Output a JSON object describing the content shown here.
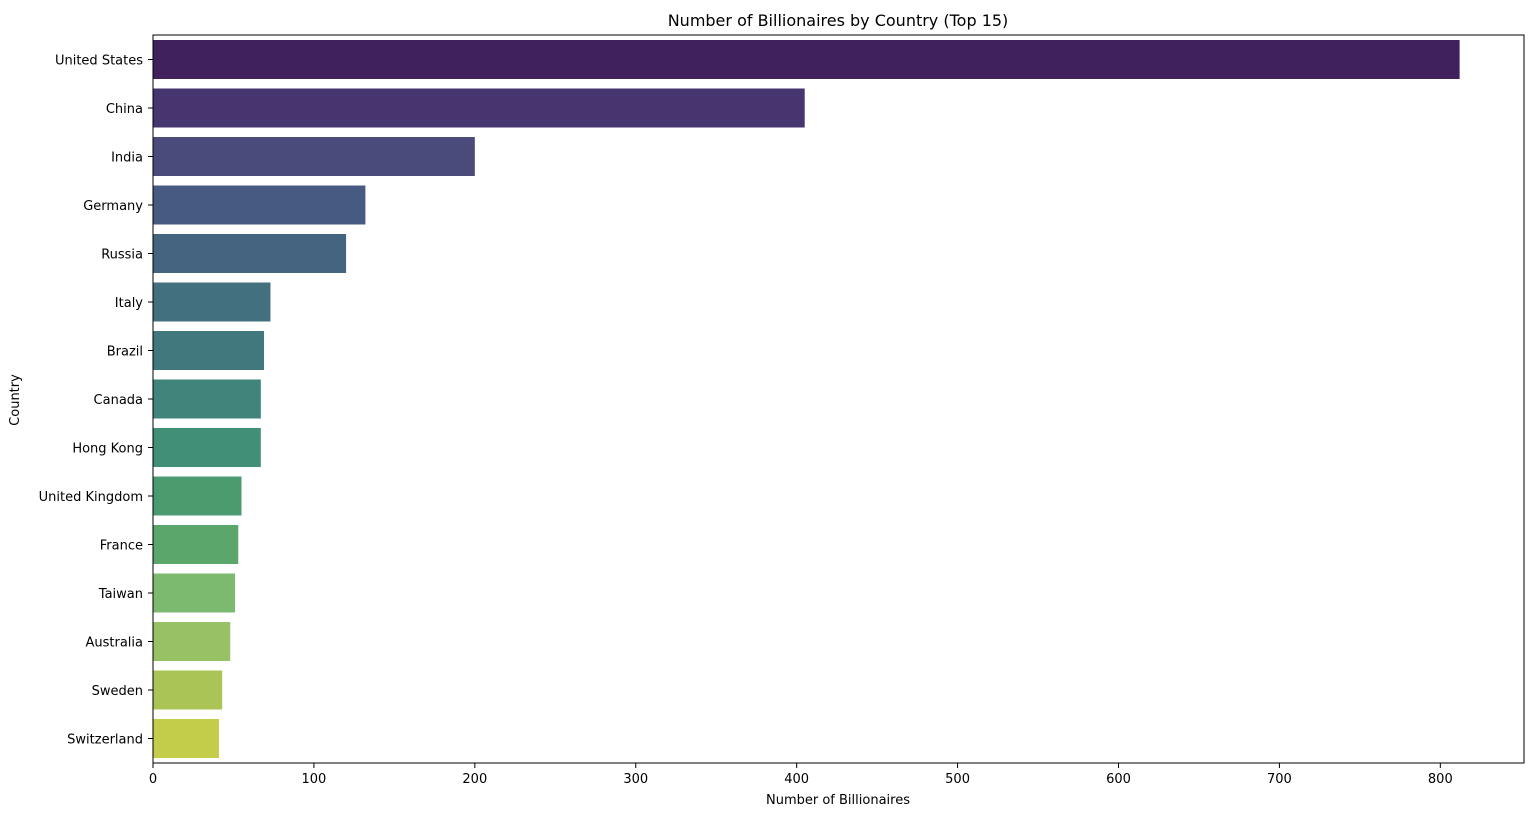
{
  "chart_data": {
    "type": "bar",
    "orientation": "horizontal",
    "title": "Number of Billionaires by Country (Top 15)",
    "xlabel": "Number of Billionaires",
    "ylabel": "Country",
    "xlim": [
      0,
      852
    ],
    "xticks": [
      0,
      100,
      200,
      300,
      400,
      500,
      600,
      700,
      800
    ],
    "grid": false,
    "legend": "none",
    "palette": "viridis",
    "categories": [
      "United States",
      "China",
      "India",
      "Germany",
      "Russia",
      "Italy",
      "Brazil",
      "Canada",
      "Hong Kong",
      "United Kingdom",
      "France",
      "Taiwan",
      "Australia",
      "Sweden",
      "Switzerland"
    ],
    "values": [
      812,
      405,
      200,
      132,
      120,
      73,
      69,
      67,
      67,
      55,
      53,
      51,
      48,
      43,
      41
    ],
    "colors": [
      "#40215e",
      "#47356f",
      "#4a4a7b",
      "#475a82",
      "#446480",
      "#42707f",
      "#41787d",
      "#40847b",
      "#428f77",
      "#4b9b6f",
      "#5aa66b",
      "#7cba6f",
      "#96c164",
      "#abc456",
      "#c4cd4a"
    ]
  }
}
